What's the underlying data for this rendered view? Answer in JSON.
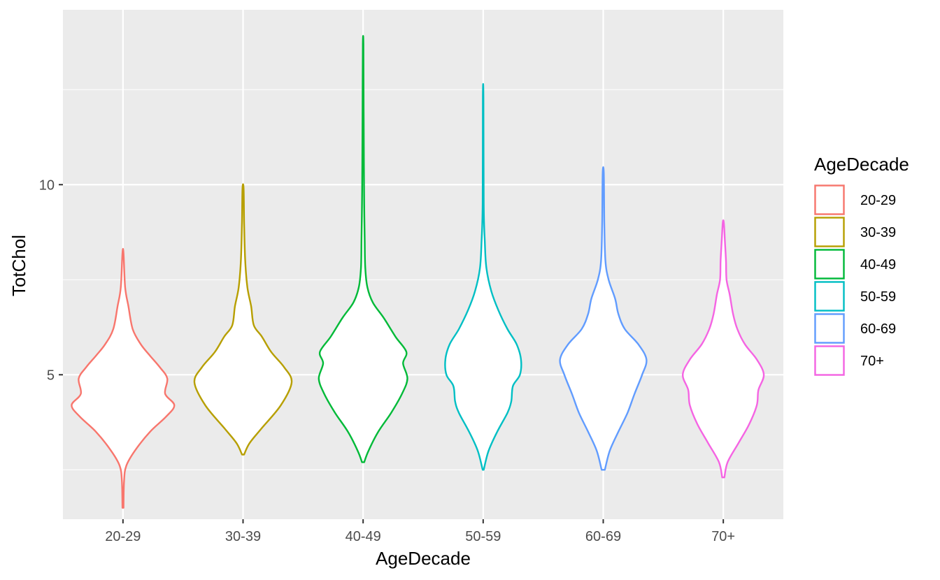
{
  "chart_data": {
    "type": "violin",
    "xlabel": "AgeDecade",
    "ylabel": "TotChol",
    "categories": [
      "20-29",
      "30-39",
      "40-49",
      "50-59",
      "60-69",
      "70+"
    ],
    "ylim": [
      1.2,
      14.6
    ],
    "y_ticks": [
      5,
      10
    ],
    "y_tick_labels": [
      "5",
      "10"
    ],
    "grid": true,
    "legend": {
      "title": "AgeDecade",
      "position": "right"
    },
    "colors": [
      "#F8766D",
      "#B79F00",
      "#00BA38",
      "#00BFC4",
      "#619CFF",
      "#F564E3"
    ],
    "series": [
      {
        "name": "20-29",
        "min": 1.5,
        "max": 8.2,
        "profile": [
          [
            1.5,
            0.01
          ],
          [
            2.2,
            0.02
          ],
          [
            2.6,
            0.06
          ],
          [
            3.0,
            0.22
          ],
          [
            3.5,
            0.5
          ],
          [
            3.9,
            0.8
          ],
          [
            4.2,
            0.95
          ],
          [
            4.5,
            0.78
          ],
          [
            4.9,
            0.82
          ],
          [
            5.2,
            0.68
          ],
          [
            5.5,
            0.5
          ],
          [
            5.8,
            0.33
          ],
          [
            6.2,
            0.18
          ],
          [
            6.8,
            0.1
          ],
          [
            7.3,
            0.04
          ],
          [
            8.2,
            0.01
          ]
        ]
      },
      {
        "name": "30-39",
        "min": 2.9,
        "max": 9.9,
        "profile": [
          [
            2.9,
            0.02
          ],
          [
            3.2,
            0.12
          ],
          [
            3.6,
            0.35
          ],
          [
            4.2,
            0.7
          ],
          [
            4.8,
            0.9
          ],
          [
            5.2,
            0.76
          ],
          [
            5.6,
            0.52
          ],
          [
            6.0,
            0.35
          ],
          [
            6.3,
            0.2
          ],
          [
            6.8,
            0.15
          ],
          [
            7.3,
            0.08
          ],
          [
            8.0,
            0.04
          ],
          [
            9.0,
            0.02
          ],
          [
            9.9,
            0.01
          ]
        ]
      },
      {
        "name": "40-49",
        "min": 2.7,
        "max": 13.7,
        "profile": [
          [
            2.7,
            0.02
          ],
          [
            3.0,
            0.1
          ],
          [
            3.5,
            0.28
          ],
          [
            4.0,
            0.52
          ],
          [
            4.5,
            0.72
          ],
          [
            4.9,
            0.82
          ],
          [
            5.3,
            0.74
          ],
          [
            5.6,
            0.8
          ],
          [
            6.0,
            0.6
          ],
          [
            6.5,
            0.38
          ],
          [
            6.9,
            0.18
          ],
          [
            7.3,
            0.08
          ],
          [
            7.8,
            0.04
          ],
          [
            8.5,
            0.03
          ],
          [
            9.5,
            0.02
          ],
          [
            10.5,
            0.015
          ],
          [
            12.0,
            0.01
          ],
          [
            13.7,
            0.005
          ]
        ]
      },
      {
        "name": "50-59",
        "min": 2.5,
        "max": 12.3,
        "profile": [
          [
            2.5,
            0.01
          ],
          [
            3.0,
            0.1
          ],
          [
            3.5,
            0.26
          ],
          [
            4.0,
            0.45
          ],
          [
            4.3,
            0.52
          ],
          [
            4.7,
            0.55
          ],
          [
            5.0,
            0.68
          ],
          [
            5.4,
            0.7
          ],
          [
            5.8,
            0.62
          ],
          [
            6.2,
            0.45
          ],
          [
            6.7,
            0.28
          ],
          [
            7.2,
            0.15
          ],
          [
            7.8,
            0.06
          ],
          [
            8.5,
            0.03
          ],
          [
            9.5,
            0.01
          ],
          [
            12.3,
            0.005
          ]
        ]
      },
      {
        "name": "60-69",
        "min": 2.5,
        "max": 10.3,
        "profile": [
          [
            2.5,
            0.03
          ],
          [
            3.0,
            0.12
          ],
          [
            3.5,
            0.28
          ],
          [
            4.0,
            0.45
          ],
          [
            4.5,
            0.58
          ],
          [
            5.0,
            0.72
          ],
          [
            5.4,
            0.8
          ],
          [
            5.8,
            0.65
          ],
          [
            6.2,
            0.4
          ],
          [
            6.6,
            0.28
          ],
          [
            7.0,
            0.22
          ],
          [
            7.5,
            0.1
          ],
          [
            8.0,
            0.04
          ],
          [
            9.0,
            0.02
          ],
          [
            10.3,
            0.01
          ]
        ]
      },
      {
        "name": "70+",
        "min": 2.3,
        "max": 9.0,
        "profile": [
          [
            2.3,
            0.02
          ],
          [
            2.7,
            0.08
          ],
          [
            3.2,
            0.28
          ],
          [
            3.7,
            0.48
          ],
          [
            4.2,
            0.62
          ],
          [
            4.6,
            0.65
          ],
          [
            5.0,
            0.75
          ],
          [
            5.4,
            0.62
          ],
          [
            5.8,
            0.4
          ],
          [
            6.2,
            0.26
          ],
          [
            6.6,
            0.18
          ],
          [
            7.1,
            0.12
          ],
          [
            7.5,
            0.06
          ],
          [
            8.0,
            0.05
          ],
          [
            8.5,
            0.03
          ],
          [
            9.0,
            0.01
          ]
        ]
      }
    ]
  }
}
